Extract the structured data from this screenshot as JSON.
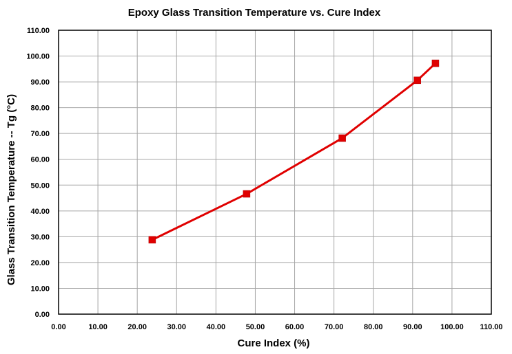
{
  "chart_data": {
    "type": "line",
    "title": "Epoxy Glass Transition Temperature vs. Cure Index",
    "xlabel": "Cure Index (%)",
    "ylabel": "Glass Transition Temperature -- Tg (°C)",
    "xlim": [
      0,
      110
    ],
    "ylim": [
      0,
      110
    ],
    "x_ticks": [
      "0.00",
      "10.00",
      "20.00",
      "30.00",
      "40.00",
      "50.00",
      "60.00",
      "70.00",
      "80.00",
      "90.00",
      "100.00",
      "110.00"
    ],
    "y_ticks": [
      "0.00",
      "10.00",
      "20.00",
      "30.00",
      "40.00",
      "50.00",
      "60.00",
      "70.00",
      "80.00",
      "90.00",
      "100.00",
      "110.00"
    ],
    "grid": true,
    "legend": "none",
    "series": [
      {
        "color": "#e00000",
        "marker": "square",
        "points": [
          {
            "x": 23.8,
            "y": 28.8
          },
          {
            "x": 47.8,
            "y": 46.6
          },
          {
            "x": 72.1,
            "y": 68.2
          },
          {
            "x": 91.2,
            "y": 90.6
          },
          {
            "x": 95.8,
            "y": 97.2
          }
        ]
      }
    ]
  }
}
